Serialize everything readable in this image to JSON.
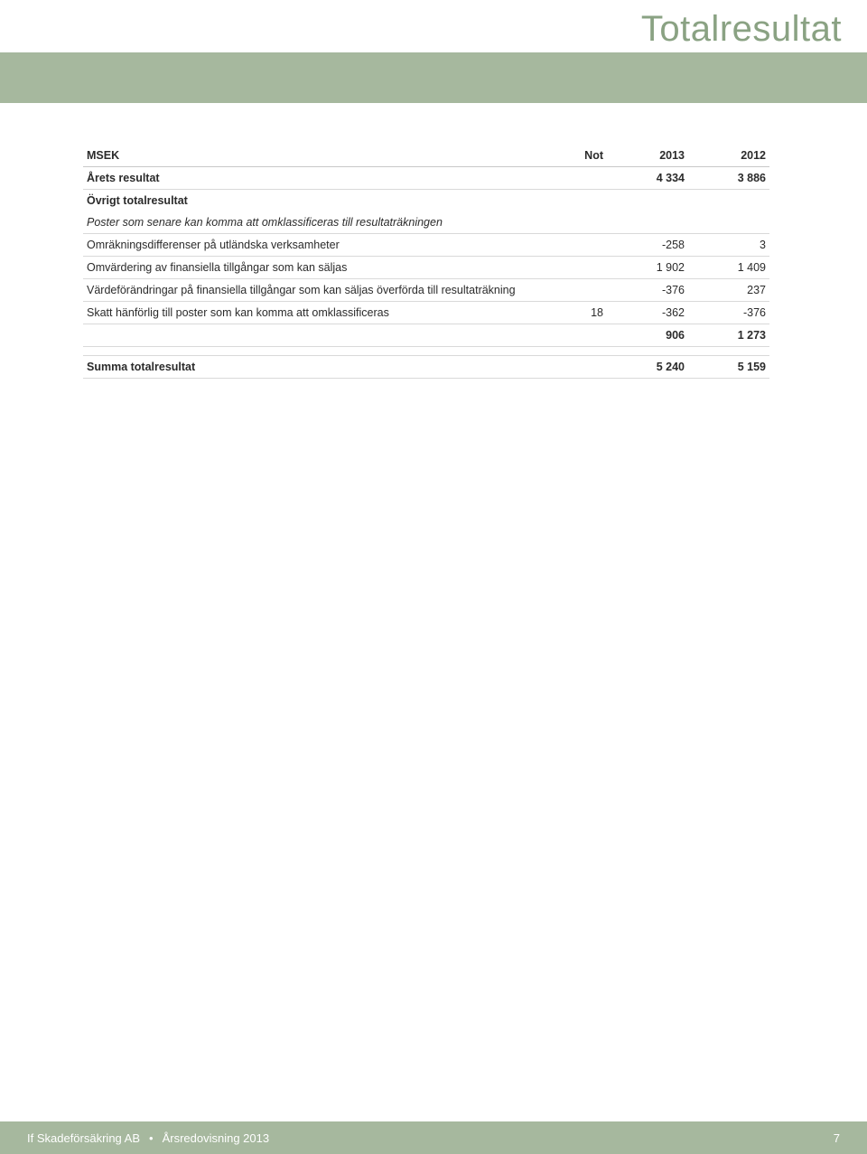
{
  "title": "Totalresultat",
  "colors": {
    "band": "#a6b89e",
    "title": "#8aa283",
    "rule": "#d9d9d9",
    "text": "#2b2b2b",
    "footer_text": "#ffffff",
    "background": "#ffffff"
  },
  "typography": {
    "title_fontsize_pt": 30,
    "body_fontsize_pt": 9.5,
    "footer_fontsize_pt": 10
  },
  "table": {
    "columns": [
      "MSEK",
      "Not",
      "2013",
      "2012"
    ],
    "col_align": [
      "left",
      "right",
      "right",
      "right"
    ],
    "rows": [
      {
        "label": "Årets resultat",
        "not": "",
        "y1": "4 334",
        "y2": "3 886",
        "bold": true,
        "border": true
      },
      {
        "section": "Övrigt totalresultat"
      },
      {
        "label": "Poster som senare kan komma att omklassificeras till resultaträkningen",
        "italic": true,
        "border": true
      },
      {
        "label": "Omräkningsdifferenser på utländska verksamheter",
        "not": "",
        "y1": "-258",
        "y2": "3",
        "border": true
      },
      {
        "label": "Omvärdering av finansiella tillgångar som kan säljas",
        "not": "",
        "y1": "1 902",
        "y2": "1 409",
        "border": true
      },
      {
        "label": "Värdeförändringar på finansiella tillgångar som kan säljas överförda till resultaträkning",
        "not": "",
        "y1": "-376",
        "y2": "237",
        "border": true
      },
      {
        "label": "Skatt hänförlig till poster som kan komma att omklassificeras",
        "not": "18",
        "y1": "-362",
        "y2": "-376",
        "border": true
      },
      {
        "label": "",
        "not": "",
        "y1": "906",
        "y2": "1 273",
        "bold": true,
        "border": true
      },
      {
        "spacer": true
      },
      {
        "label": "Summa totalresultat",
        "not": "",
        "y1": "5 240",
        "y2": "5 159",
        "bold": true,
        "border": true,
        "border_top": true
      }
    ]
  },
  "footer": {
    "company": "If Skadeförsäkring AB",
    "report": "Årsredovisning 2013",
    "page": "7"
  }
}
